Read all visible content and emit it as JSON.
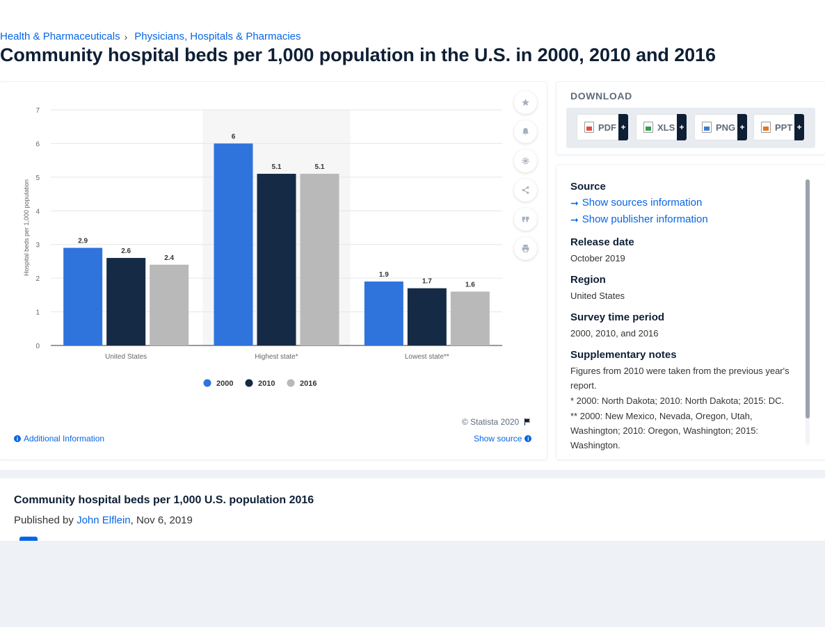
{
  "breadcrumb": [
    "Health & Pharmaceuticals",
    "Physicians, Hospitals & Pharmacies"
  ],
  "title": "Community hospital beds per 1,000 population in the U.S. in 2000, 2010 and 2016",
  "chart_data": {
    "type": "bar",
    "ylabel": "Hospital beds per 1,000 population",
    "categories": [
      "United States",
      "Highest state*",
      "Lowest state**"
    ],
    "ylim": [
      0,
      7
    ],
    "yticks": [
      0,
      1,
      2,
      3,
      4,
      5,
      6,
      7
    ],
    "grid": true,
    "legend": "bottom",
    "series": [
      {
        "name": "2000",
        "color": "#2f73dc",
        "values": [
          2.9,
          6,
          1.9
        ]
      },
      {
        "name": "2010",
        "color": "#152a45",
        "values": [
          2.6,
          5.1,
          1.7
        ]
      },
      {
        "name": "2016",
        "color": "#b9b9b9",
        "values": [
          2.4,
          5.1,
          1.6
        ]
      }
    ],
    "highlighted_category": "Highest state*"
  },
  "copyright": "© Statista 2020",
  "additional_info": "Additional Information",
  "show_source": "Show source",
  "download": {
    "title": "DOWNLOAD",
    "buttons": [
      "PDF",
      "XLS",
      "PNG",
      "PPT"
    ],
    "plus": "+"
  },
  "info": {
    "source_heading": "Source",
    "show_sources": "Show sources information",
    "show_publisher": "Show publisher information",
    "release_heading": "Release date",
    "release_value": "October 2019",
    "region_heading": "Region",
    "region_value": "United States",
    "period_heading": "Survey time period",
    "period_value": "2000, 2010, and 2016",
    "notes_heading": "Supplementary notes",
    "notes": [
      "Figures from 2010 were taken from the previous year's report.",
      "* 2000: North Dakota; 2010: North Dakota; 2015: DC.",
      "** 2000: New Mexico, Nevada, Oregon, Utah, Washington; 2010: Oregon, Washington; 2015: Washington."
    ]
  },
  "related": {
    "title": "Community hospital beds per 1,000 U.S. population 2016",
    "published_prefix": "Published by",
    "author": "John Elflein",
    "date": ", Nov 6, 2019"
  },
  "icons": [
    "star-icon",
    "bell-icon",
    "gear-icon",
    "share-icon",
    "quote-icon",
    "print-icon",
    "flag-icon",
    "info-icon",
    "arrow-right-icon"
  ]
}
